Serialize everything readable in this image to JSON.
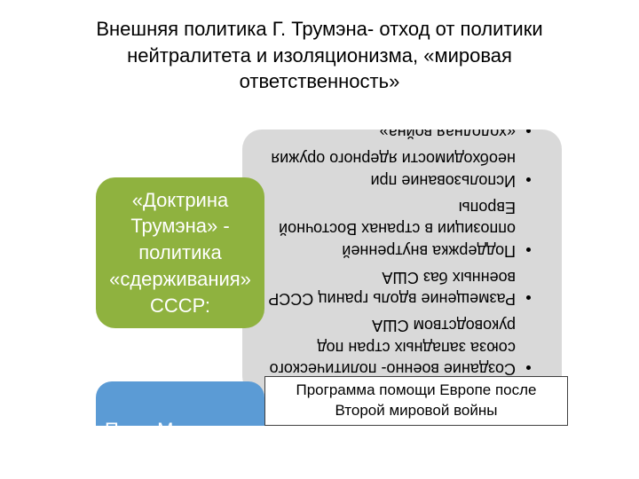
{
  "title": "Внешняя политика Г. Трумэна- отход от политики нейтралитета и изоляционизма, «мировая ответственность»",
  "greenBox": {
    "text": "«Доктрина Трумэна» - политика «сдерживания» СССР:",
    "bg": "#8fb23f",
    "color": "#ffffff",
    "fontSize": 22,
    "radius": 22
  },
  "greyBox": {
    "bg": "#d9d9d9",
    "color": "#000000",
    "fontSize": 18,
    "radius": 22,
    "rotatedDeg": 180,
    "items": [
      "Создание военно- политического союза западных стран под руководством США",
      "Размещение вдоль границ СССР военных баз США",
      "Поддержка внутренней оппозиции в странах Восточной Европы",
      "Использование при необходимости ядерного оружия",
      "«холодная война»"
    ]
  },
  "blueBox": {
    "text": "План Маршалла",
    "bg": "#5b9bd5",
    "color": "#ffffff",
    "fontSize": 22,
    "radius": 18
  },
  "outlineBox": {
    "text": "Программа помощи Европе после Второй мировой войны",
    "bg": "#ffffff",
    "border": "#404040",
    "color": "#000000",
    "fontSize": 17
  },
  "titleStyle": {
    "color": "#000000",
    "fontSize": 22
  }
}
